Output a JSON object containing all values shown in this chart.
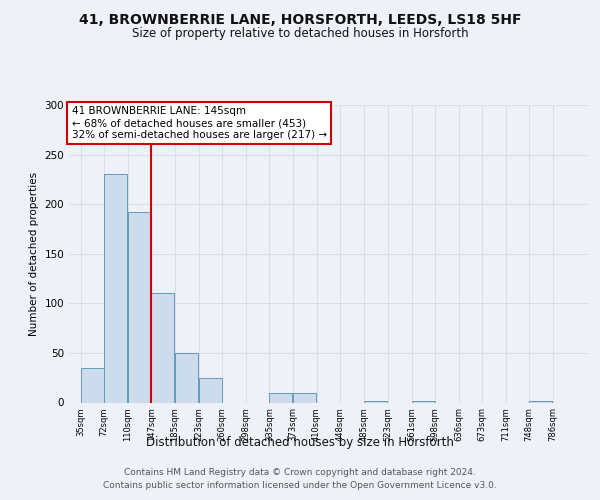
{
  "title": "41, BROWNBERRIE LANE, HORSFORTH, LEEDS, LS18 5HF",
  "subtitle": "Size of property relative to detached houses in Horsforth",
  "xlabel": "Distribution of detached houses by size in Horsforth",
  "ylabel": "Number of detached properties",
  "bins": [
    35,
    72,
    110,
    147,
    185,
    223,
    260,
    298,
    335,
    373,
    410,
    448,
    485,
    523,
    561,
    598,
    636,
    673,
    711,
    748,
    786
  ],
  "bar_heights": [
    35,
    230,
    192,
    110,
    50,
    25,
    0,
    0,
    10,
    10,
    0,
    0,
    2,
    0,
    2,
    0,
    0,
    0,
    0,
    2,
    0
  ],
  "bar_color": "#ccdcec",
  "bar_edge_color": "#6699bb",
  "redline_x": 147,
  "annotation_lines": [
    "41 BROWNBERRIE LANE: 145sqm",
    "← 68% of detached houses are smaller (453)",
    "32% of semi-detached houses are larger (217) →"
  ],
  "ylim": [
    0,
    300
  ],
  "yticks": [
    0,
    50,
    100,
    150,
    200,
    250,
    300
  ],
  "background_color": "#eef2f8",
  "grid_color": "#d8dde8",
  "annotation_box_color": "#ffffff",
  "annotation_box_edge_color": "#cc0000",
  "redline_color": "#cc0000",
  "footer_line1": "Contains HM Land Registry data © Crown copyright and database right 2024.",
  "footer_line2": "Contains public sector information licensed under the Open Government Licence v3.0."
}
